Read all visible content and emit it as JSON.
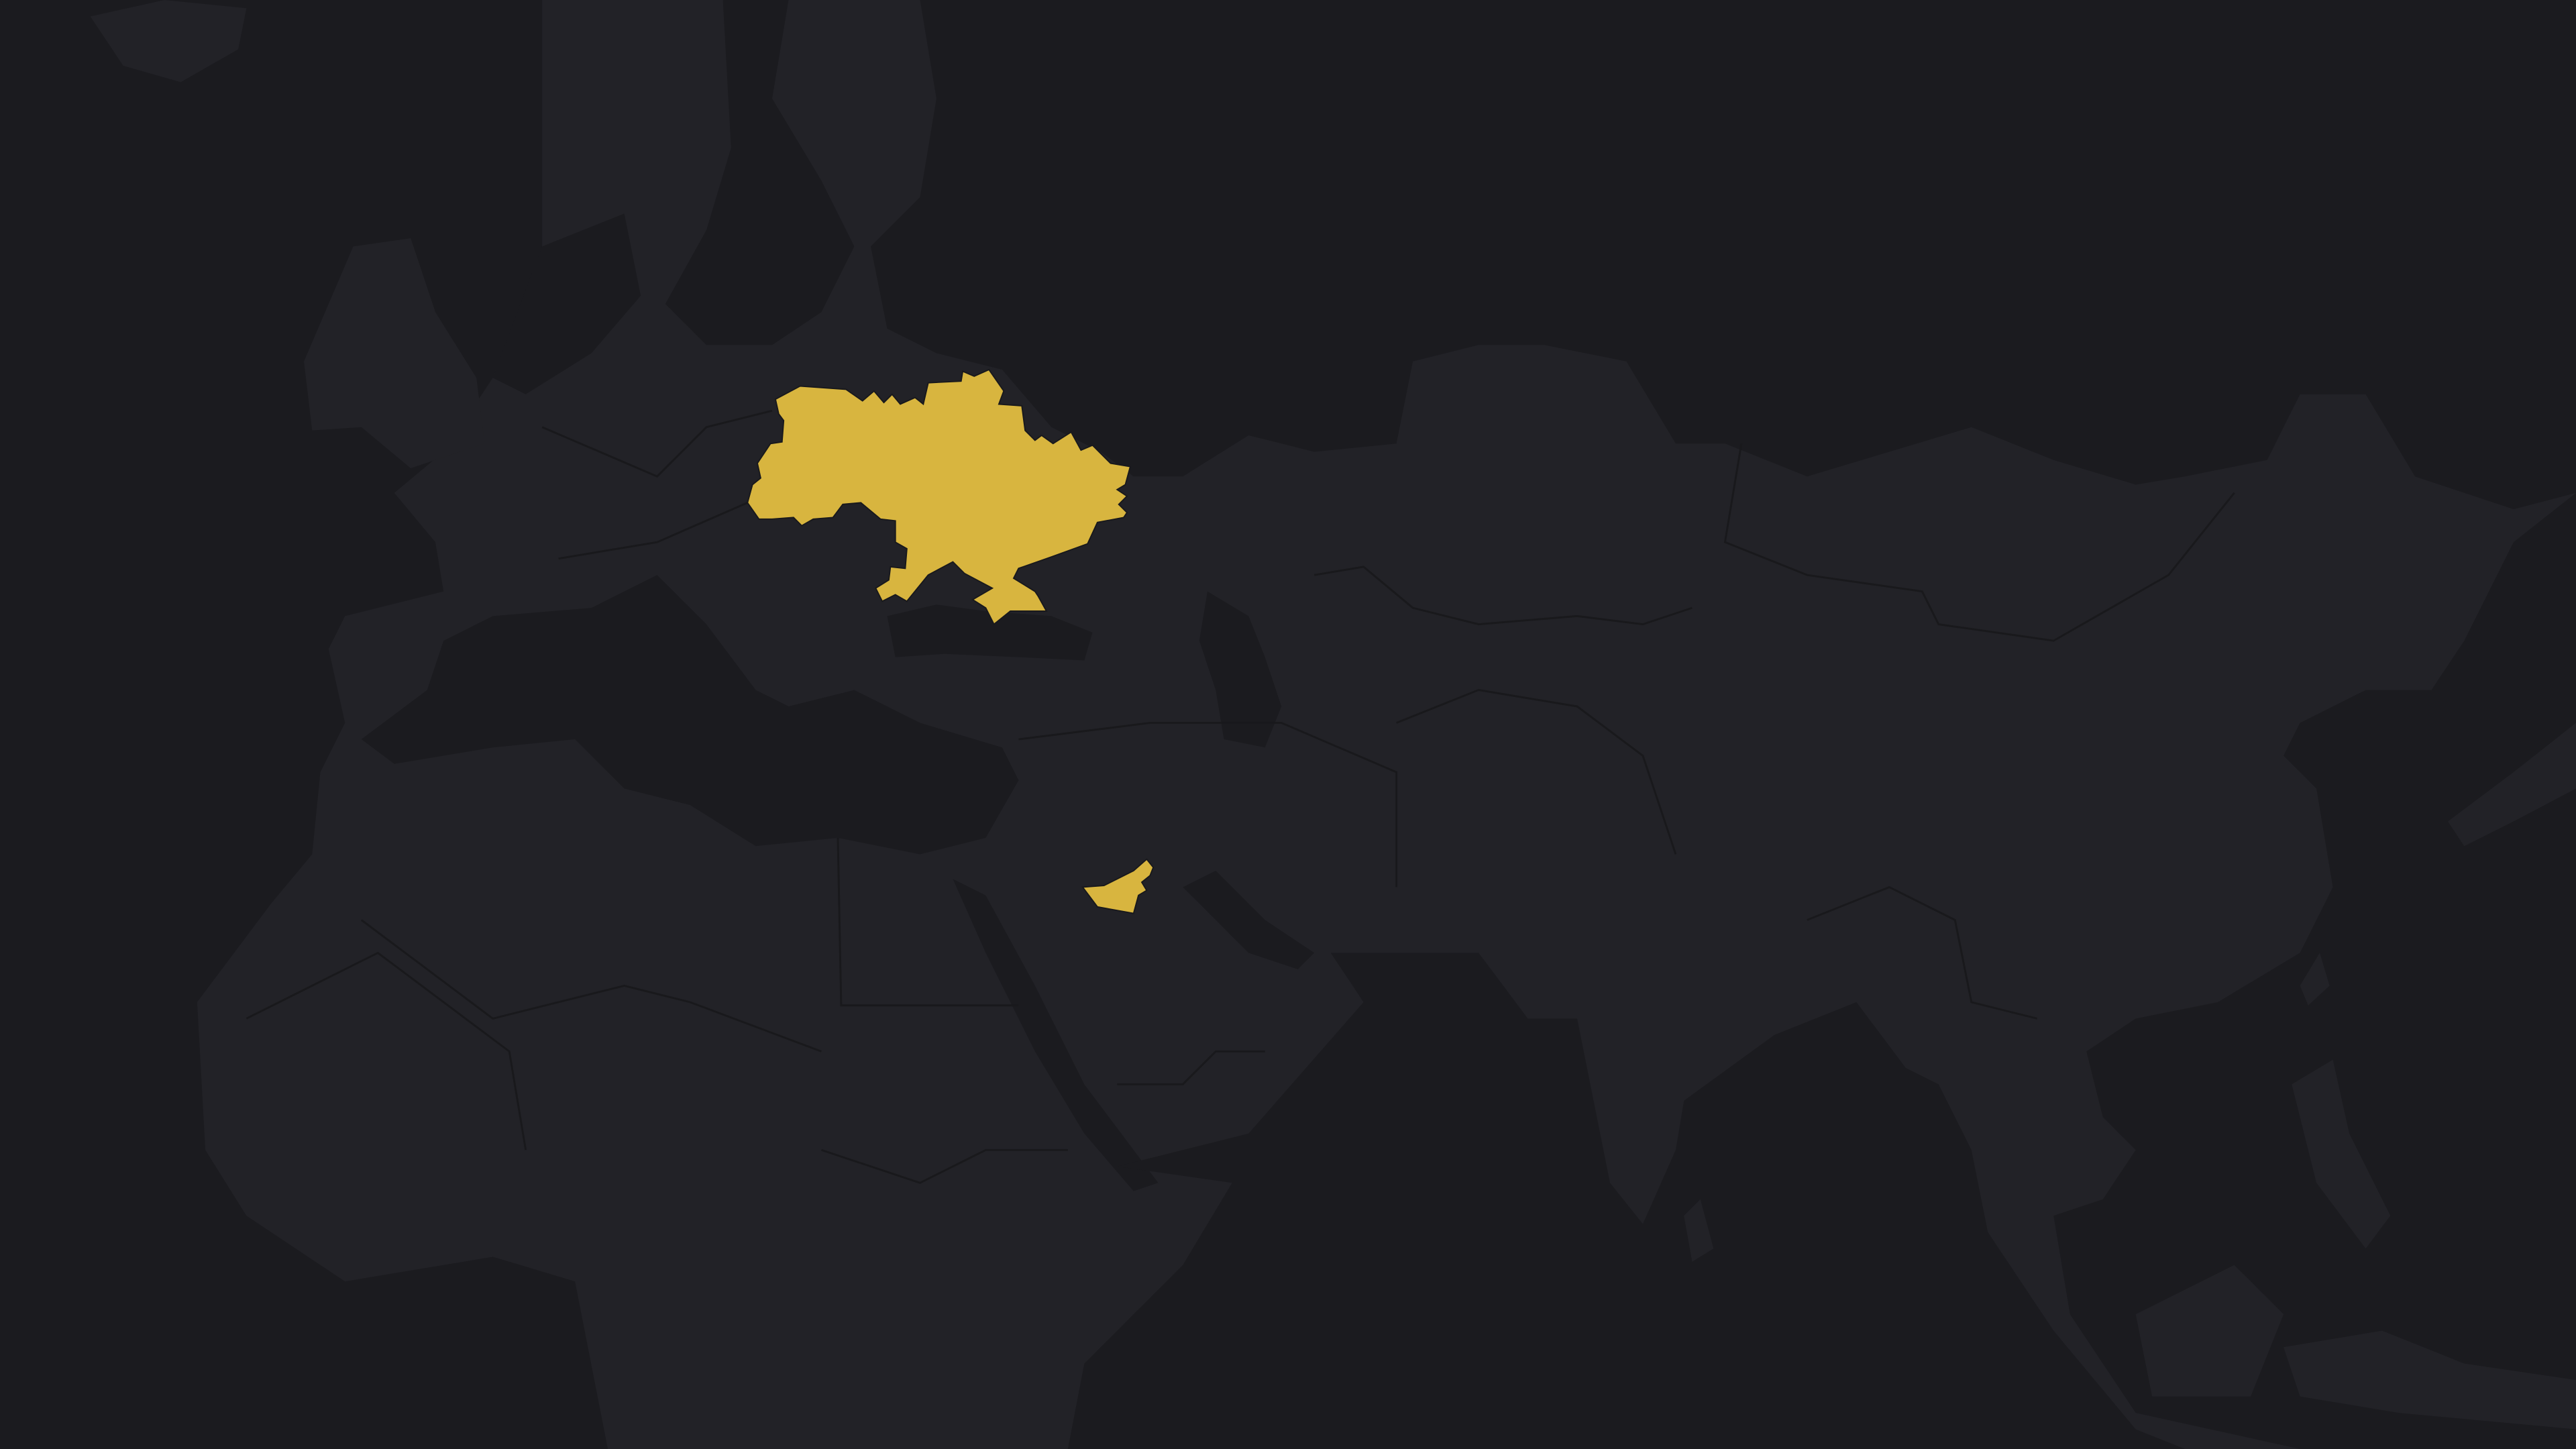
{
  "map": {
    "colors": {
      "sea": "#1b1b1f",
      "land": "#222227",
      "border": "#19191c",
      "highlight": "#d8b53f"
    }
  }
}
